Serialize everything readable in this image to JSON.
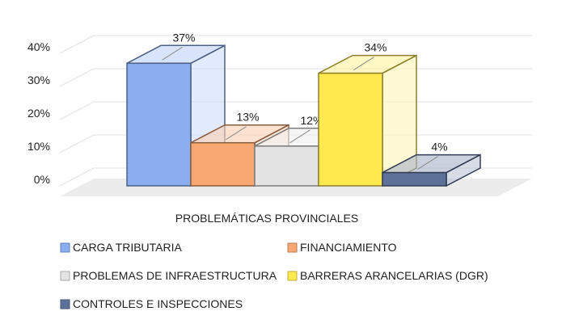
{
  "chart_data": {
    "type": "bar",
    "title": "",
    "xlabel": "PROBLEMÁTICAS PROVINCIALES",
    "ylabel": "",
    "ylim": [
      0,
      40
    ],
    "yticks": [
      "0%",
      "10%",
      "20%",
      "30%",
      "40%"
    ],
    "grid": true,
    "legend_position": "bottom",
    "categories": [
      "PROBLEMÁTICAS PROVINCIALES"
    ],
    "series": [
      {
        "name": "CARGA TRIBUTARIA",
        "values": [
          37
        ],
        "label": "37%",
        "color": "#8aaef0"
      },
      {
        "name": "FINANCIAMIENTO",
        "values": [
          13
        ],
        "label": "13%",
        "color": "#f9a873"
      },
      {
        "name": "PROBLEMAS DE INFRAESTRUCTURA",
        "values": [
          12
        ],
        "label": "12%",
        "color": "#e3e3e3"
      },
      {
        "name": "BARRERAS ARANCELARIAS (DGR)",
        "values": [
          34
        ],
        "label": "34%",
        "color": "#ffe94f"
      },
      {
        "name": "CONTROLES E INSPECCIONES",
        "values": [
          4
        ],
        "label": "4%",
        "color": "#5d7199"
      }
    ]
  }
}
